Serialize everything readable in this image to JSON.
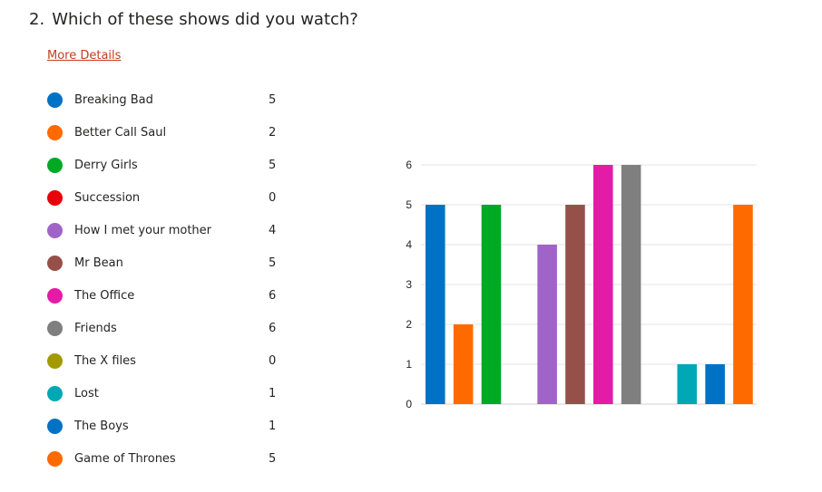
{
  "question": {
    "number": "2.",
    "text": "Which of these shows did you watch?"
  },
  "more_details_label": "More Details",
  "chart_data": {
    "type": "bar",
    "title": "",
    "xlabel": "",
    "ylabel": "",
    "ylim": [
      0,
      6
    ],
    "yticks": [
      0,
      1,
      2,
      3,
      4,
      5,
      6
    ],
    "grid": true,
    "legend_placement": "left",
    "categories": [
      "Breaking Bad",
      "Better Call Saul",
      "Derry Girls",
      "Succession",
      "How I met your mother",
      "Mr Bean",
      "The Office",
      "Friends",
      "The X files",
      "Lost",
      "The Boys",
      "Game of Thrones"
    ],
    "values": [
      5,
      2,
      5,
      0,
      4,
      5,
      6,
      6,
      0,
      1,
      1,
      5
    ],
    "colors": [
      "#0072c6",
      "#ff6a00",
      "#00a924",
      "#e8000b",
      "#a064c8",
      "#955149",
      "#e41ba7",
      "#7f7f7f",
      "#a39a00",
      "#00a7b5",
      "#0072c6",
      "#ff6a00"
    ]
  }
}
